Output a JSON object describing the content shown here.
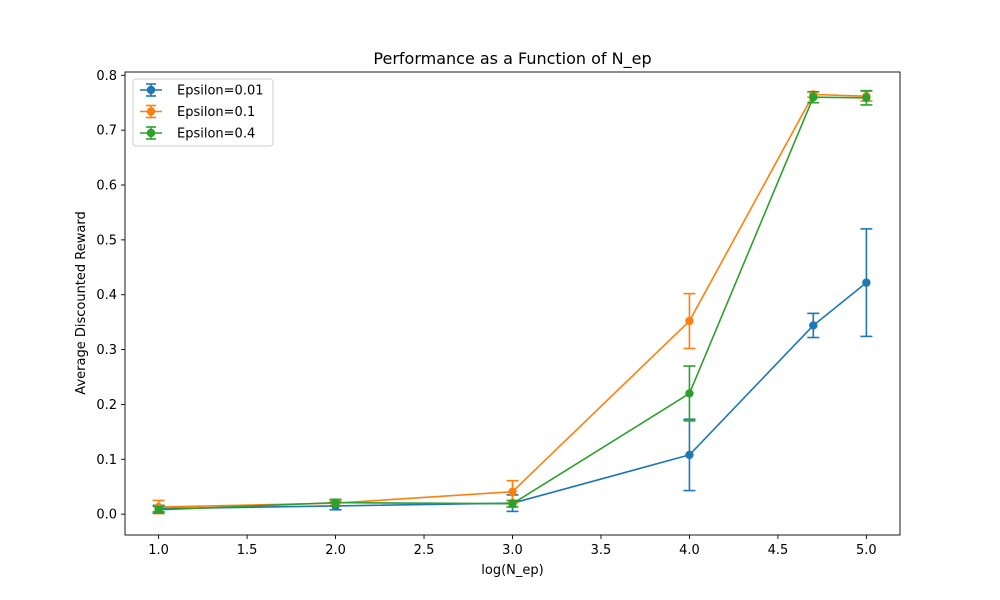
{
  "chart_data": {
    "type": "line",
    "title": "Performance as a Function of N_ep",
    "xlabel": "log(N_ep)",
    "ylabel": "Average Discounted Reward",
    "xlim": [
      0.81,
      5.19
    ],
    "ylim": [
      -0.038,
      0.806
    ],
    "xticks": [
      1.0,
      1.5,
      2.0,
      2.5,
      3.0,
      3.5,
      4.0,
      4.5,
      5.0
    ],
    "xtick_labels": [
      "1.0",
      "1.5",
      "2.0",
      "2.5",
      "3.0",
      "3.5",
      "4.0",
      "4.5",
      "5.0"
    ],
    "yticks": [
      0.0,
      0.1,
      0.2,
      0.3,
      0.4,
      0.5,
      0.6,
      0.7,
      0.8
    ],
    "ytick_labels": [
      "0.0",
      "0.1",
      "0.2",
      "0.3",
      "0.4",
      "0.5",
      "0.6",
      "0.7",
      "0.8"
    ],
    "grid": false,
    "legend_position": "upper-left",
    "error_bars": true,
    "x": [
      1.0,
      2.0,
      3.0,
      4.0,
      4.7,
      5.0
    ],
    "series": [
      {
        "name": "Epsilon=0.01",
        "color": "#1f77b4",
        "values": [
          0.01,
          0.015,
          0.02,
          0.108,
          0.344,
          0.422
        ],
        "errors": [
          0.006,
          0.007,
          0.015,
          0.065,
          0.022,
          0.098
        ]
      },
      {
        "name": "Epsilon=0.1",
        "color": "#ff7f0e",
        "values": [
          0.013,
          0.02,
          0.041,
          0.352,
          0.765,
          0.762
        ],
        "errors": [
          0.012,
          0.004,
          0.02,
          0.05,
          0.005,
          0.009
        ]
      },
      {
        "name": "Epsilon=0.4",
        "color": "#2ca02c",
        "values": [
          0.008,
          0.021,
          0.019,
          0.22,
          0.76,
          0.759
        ],
        "errors": [
          0.006,
          0.006,
          0.006,
          0.05,
          0.01,
          0.013
        ]
      }
    ]
  }
}
